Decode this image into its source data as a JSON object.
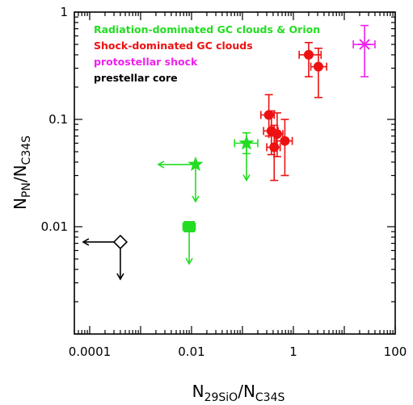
{
  "chart_data": {
    "type": "scatter",
    "title": "",
    "xlabel": {
      "main": "N",
      "sub": "29SiO",
      "sep": "/",
      "main2": "N",
      "sub2": "C34S"
    },
    "ylabel": {
      "main": "N",
      "sub": "PN",
      "sep": "/",
      "main2": "N",
      "sub2": "C34S"
    },
    "x_scale": "log",
    "y_scale": "log",
    "xlim": [
      5e-05,
      100
    ],
    "ylim": [
      0.001,
      1
    ],
    "x_ticks": [
      {
        "value": 0.0001,
        "label": "0.0001"
      },
      {
        "value": 0.01,
        "label": "0.01"
      },
      {
        "value": 1,
        "label": "1"
      },
      {
        "value": 100,
        "label": "100"
      }
    ],
    "y_ticks": [
      {
        "value": 0.01,
        "label": "0.01"
      },
      {
        "value": 0.1,
        "label": "0.1"
      },
      {
        "value": 1,
        "label": "1"
      }
    ],
    "grid": false,
    "legend_position": "top-left",
    "series": [
      {
        "name": "Radiation-dominated GC clouds & Orion",
        "color": "#22dd22",
        "points": [
          {
            "x": 0.12,
            "y": 0.06,
            "marker": "star",
            "xerr": [
              0.07,
              0.2
            ],
            "yerr": [
              0.048,
              0.075
            ],
            "upper_limit_y": true
          },
          {
            "x": 0.012,
            "y": 0.038,
            "marker": "star",
            "upper_limit_x": true,
            "upper_limit_y": true
          },
          {
            "x": 0.009,
            "y": 0.01,
            "marker": "square",
            "xerr": [
              0.0068,
              0.0118
            ],
            "upper_limit_y": true
          }
        ]
      },
      {
        "name": "Shock-dominated GC clouds",
        "color": "#ee1111",
        "points": [
          {
            "x": 2.0,
            "y": 0.4,
            "marker": "circle",
            "xerr": [
              1.3,
              3.5
            ],
            "yerr": [
              0.25,
              0.52
            ]
          },
          {
            "x": 3.1,
            "y": 0.31,
            "marker": "circle",
            "xerr": [
              2.2,
              4.5
            ],
            "yerr": [
              0.16,
              0.46
            ]
          },
          {
            "x": 0.33,
            "y": 0.11,
            "marker": "circle",
            "xerr": [
              0.23,
              0.42
            ],
            "yerr": [
              0.07,
              0.17
            ]
          },
          {
            "x": 0.37,
            "y": 0.078,
            "marker": "circle",
            "xerr": [
              0.26,
              0.5
            ],
            "yerr": [
              0.047,
              0.12
            ]
          },
          {
            "x": 0.48,
            "y": 0.073,
            "marker": "circle",
            "xerr": [
              0.33,
              0.62
            ],
            "yerr": [
              0.045,
              0.115
            ]
          },
          {
            "x": 0.42,
            "y": 0.055,
            "marker": "circle",
            "xerr": [
              0.3,
              0.55
            ],
            "yerr": [
              0.027,
              0.088
            ]
          },
          {
            "x": 0.68,
            "y": 0.063,
            "marker": "circle",
            "xerr": [
              0.45,
              0.95
            ],
            "yerr": [
              0.03,
              0.1
            ]
          }
        ]
      },
      {
        "name": "protostellar shock",
        "color": "#ee22ee",
        "points": [
          {
            "x": 25,
            "y": 0.5,
            "marker": "cross-star",
            "xerr": [
              15,
              40
            ],
            "yerr": [
              0.25,
              0.75
            ]
          }
        ]
      },
      {
        "name": "prestellar core",
        "color": "#000000",
        "points": [
          {
            "x": 0.0004,
            "y": 0.0072,
            "marker": "diamond",
            "upper_limit_x": true,
            "upper_limit_y": true
          }
        ]
      }
    ]
  }
}
